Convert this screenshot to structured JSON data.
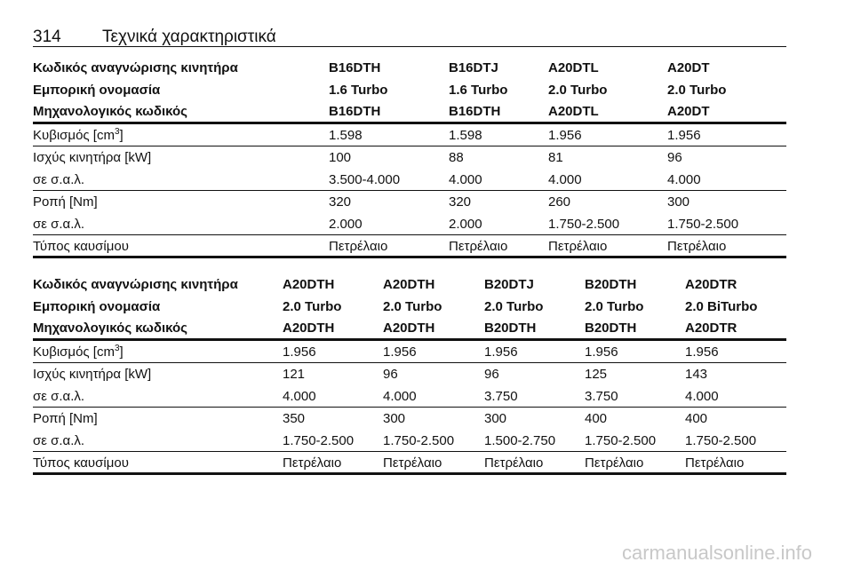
{
  "header": {
    "page_number": "314",
    "title": "Τεχνικά χαρακτηριστικά"
  },
  "tables": [
    {
      "header_rows": [
        [
          "Κωδικός αναγνώρισης κινητήρα",
          "B16DTH",
          "B16DTJ",
          "A20DTL",
          "A20DT"
        ],
        [
          "Εμπορική ονομασία",
          "1.6 Turbo",
          "1.6 Turbo",
          "2.0 Turbo",
          "2.0 Turbo"
        ],
        [
          "Μηχανολογικός κωδικός",
          "B16DTH",
          "B16DTH",
          "A20DTL",
          "A20DT"
        ]
      ],
      "groups": [
        [
          [
            {
              "text": "Κυβισμός [cm",
              "sup": "3",
              "after": "]"
            },
            "1.598",
            "1.598",
            "1.956",
            "1.956"
          ]
        ],
        [
          [
            "Ισχύς κινητήρα [kW]",
            "100",
            "88",
            "81",
            "96"
          ],
          [
            "σε σ.α.λ.",
            "3.500-4.000",
            "4.000",
            "4.000",
            "4.000"
          ]
        ],
        [
          [
            "Ροπή [Nm]",
            "320",
            "320",
            "260",
            "300"
          ],
          [
            "σε σ.α.λ.",
            "2.000",
            "2.000",
            "1.750-2.500",
            "1.750-2.500"
          ]
        ],
        [
          [
            "Τύπος καυσίμου",
            "Πετρέλαιο",
            "Πετρέλαιο",
            "Πετρέλαιο",
            "Πετρέλαιο"
          ]
        ]
      ]
    },
    {
      "header_rows": [
        [
          "Κωδικός αναγνώρισης κινητήρα",
          "A20DTH",
          "A20DTH",
          "B20DTJ",
          "B20DTH",
          "A20DTR"
        ],
        [
          "Εμπορική ονομασία",
          "2.0 Turbo",
          "2.0 Turbo",
          "2.0 Turbo",
          "2.0 Turbo",
          "2.0 BiTurbo"
        ],
        [
          "Μηχανολογικός κωδικός",
          "A20DTH",
          "A20DTH",
          "B20DTH",
          "B20DTH",
          "A20DTR"
        ]
      ],
      "groups": [
        [
          [
            {
              "text": "Κυβισμός [cm",
              "sup": "3",
              "after": "]"
            },
            "1.956",
            "1.956",
            "1.956",
            "1.956",
            "1.956"
          ]
        ],
        [
          [
            "Ισχύς κινητήρα [kW]",
            "121",
            "96",
            "96",
            "125",
            "143"
          ],
          [
            "σε σ.α.λ.",
            "4.000",
            "4.000",
            "3.750",
            "3.750",
            "4.000"
          ]
        ],
        [
          [
            "Ροπή [Nm]",
            "350",
            "300",
            "300",
            "400",
            "400"
          ],
          [
            "σε σ.α.λ.",
            "1.750-2.500",
            "1.750-2.500",
            "1.500-2.750",
            "1.750-2.500",
            "1.750-2.500"
          ]
        ],
        [
          [
            "Τύπος καυσίμου",
            "Πετρέλαιο",
            "Πετρέλαιο",
            "Πετρέλαιο",
            "Πετρέλαιο",
            "Πετρέλαιο"
          ]
        ]
      ]
    }
  ],
  "footer": {
    "watermark": "carmanualsonline.info"
  }
}
